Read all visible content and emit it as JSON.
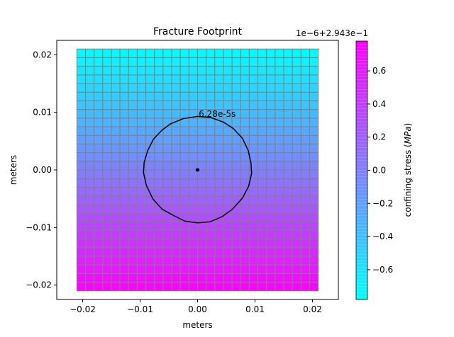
{
  "chart_data": {
    "type": "heatmap",
    "title": "Fracture Footprint",
    "xlabel": "meters",
    "ylabel": "meters",
    "xlim": [
      -0.0245,
      0.0245
    ],
    "ylim": [
      -0.0225,
      0.0225
    ],
    "xticks": [
      -0.02,
      -0.01,
      0.0,
      0.01,
      0.02
    ],
    "xtick_labels": [
      "−0.02",
      "−0.01",
      "0.00",
      "0.01",
      "0.02"
    ],
    "yticks": [
      -0.02,
      -0.01,
      0.0,
      0.01,
      0.02
    ],
    "ytick_labels": [
      "−0.02",
      "−0.01",
      "0.00",
      "0.01",
      "0.02"
    ],
    "mesh": {
      "x_range": [
        -0.021,
        0.021
      ],
      "y_range": [
        -0.021,
        0.021
      ],
      "nx": 28,
      "ny": 28,
      "edge_color": "#808080"
    },
    "colormap": {
      "name": "cool",
      "low_color": "#ff00ff",
      "high_color": "#00ffff"
    },
    "injection_point": {
      "x": 0.0,
      "y": 0.0
    },
    "contour": {
      "label": "6.28e-5s",
      "label_at": {
        "x": 0.0002,
        "y": 0.0097
      },
      "points": [
        [
          0.0,
          0.0093
        ],
        [
          0.0023,
          0.0091
        ],
        [
          0.0045,
          0.0083
        ],
        [
          0.0062,
          0.0072
        ],
        [
          0.0078,
          0.0055
        ],
        [
          0.0088,
          0.0034
        ],
        [
          0.0093,
          0.0012
        ],
        [
          0.0094,
          -0.0006
        ],
        [
          0.0089,
          -0.0028
        ],
        [
          0.0078,
          -0.0049
        ],
        [
          0.0061,
          -0.0068
        ],
        [
          0.0043,
          -0.0081
        ],
        [
          0.0022,
          -0.009
        ],
        [
          0.0,
          -0.0092
        ],
        [
          -0.0022,
          -0.0089
        ],
        [
          -0.0042,
          -0.0079
        ],
        [
          -0.0062,
          -0.0068
        ],
        [
          -0.0078,
          -0.005
        ],
        [
          -0.0089,
          -0.0027
        ],
        [
          -0.0094,
          -0.0005
        ],
        [
          -0.0093,
          0.0013
        ],
        [
          -0.0087,
          0.0033
        ],
        [
          -0.0077,
          0.0053
        ],
        [
          -0.0062,
          0.0069
        ],
        [
          -0.0047,
          0.008
        ],
        [
          -0.0025,
          0.0089
        ],
        [
          0.0,
          0.0093
        ]
      ]
    },
    "colorbar": {
      "label": "confining stress ($MPa$)",
      "offset_text": "1e−6+2.943e−1",
      "range": [
        -0.78,
        0.78
      ],
      "ticks": [
        -0.6,
        -0.4,
        -0.2,
        0.0,
        0.2,
        0.4,
        0.6
      ],
      "tick_labels": [
        "−0.6",
        "−0.4",
        "−0.2",
        "0.0",
        "0.2",
        "0.4",
        "0.6"
      ]
    }
  }
}
